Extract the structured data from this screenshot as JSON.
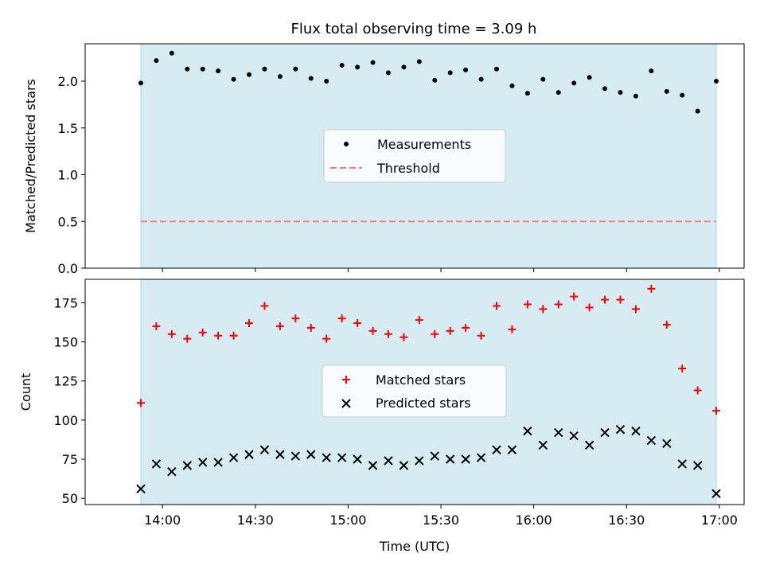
{
  "title": "Flux total observing time = 3.09 h",
  "colors": {
    "band": "#add8e6",
    "measurement": "#000000",
    "threshold": "#f08080",
    "matched": "#ff0000",
    "predicted": "#000000"
  },
  "chart_data": [
    {
      "type": "scatter",
      "ylabel": "Matched/Predicted stars",
      "ylim": [
        0,
        2.4
      ],
      "yticks": [
        "0.0",
        "0.5",
        "1.0",
        "1.5",
        "2.0"
      ],
      "legend_placement": "center",
      "observing_window": [
        "13:53",
        "16:59"
      ],
      "threshold": {
        "name": "Threshold",
        "value": 0.5
      },
      "series": [
        {
          "name": "Measurements",
          "x": [
            "13:53",
            "13:58",
            "14:03",
            "14:08",
            "14:13",
            "14:18",
            "14:23",
            "14:28",
            "14:33",
            "14:38",
            "14:43",
            "14:48",
            "14:53",
            "14:58",
            "15:03",
            "15:08",
            "15:13",
            "15:18",
            "15:23",
            "15:28",
            "15:33",
            "15:38",
            "15:43",
            "15:48",
            "15:53",
            "15:58",
            "16:03",
            "16:08",
            "16:13",
            "16:18",
            "16:23",
            "16:28",
            "16:33",
            "16:38",
            "16:43",
            "16:48",
            "16:53",
            "16:59"
          ],
          "y": [
            1.98,
            2.22,
            2.3,
            2.13,
            2.13,
            2.11,
            2.02,
            2.07,
            2.13,
            2.05,
            2.13,
            2.03,
            2.0,
            2.17,
            2.15,
            2.2,
            2.09,
            2.15,
            2.21,
            2.01,
            2.09,
            2.12,
            2.02,
            2.13,
            1.95,
            1.87,
            2.02,
            1.88,
            1.98,
            2.04,
            1.92,
            1.88,
            1.84,
            2.11,
            1.89,
            1.85,
            1.68,
            2.0
          ]
        }
      ]
    },
    {
      "type": "scatter",
      "xlabel": "Time (UTC)",
      "ylabel": "Count",
      "ylim": [
        46,
        190
      ],
      "yticks": [
        "50",
        "75",
        "100",
        "125",
        "150",
        "175"
      ],
      "xticks": [
        "14:00",
        "14:30",
        "15:00",
        "15:30",
        "16:00",
        "16:30",
        "17:00"
      ],
      "legend_placement": "center",
      "observing_window": [
        "13:53",
        "16:59"
      ],
      "series": [
        {
          "name": "Matched stars",
          "x": [
            "13:53",
            "13:58",
            "14:03",
            "14:08",
            "14:13",
            "14:18",
            "14:23",
            "14:28",
            "14:33",
            "14:38",
            "14:43",
            "14:48",
            "14:53",
            "14:58",
            "15:03",
            "15:08",
            "15:13",
            "15:18",
            "15:23",
            "15:28",
            "15:33",
            "15:38",
            "15:43",
            "15:48",
            "15:53",
            "15:58",
            "16:03",
            "16:08",
            "16:13",
            "16:18",
            "16:23",
            "16:28",
            "16:33",
            "16:38",
            "16:43",
            "16:48",
            "16:53",
            "16:59"
          ],
          "y": [
            111,
            160,
            155,
            152,
            156,
            154,
            154,
            162,
            173,
            160,
            165,
            159,
            152,
            165,
            162,
            157,
            155,
            153,
            164,
            155,
            157,
            159,
            154,
            173,
            158,
            174,
            171,
            174,
            179,
            172,
            177,
            177,
            171,
            184,
            161,
            133,
            119,
            106
          ]
        },
        {
          "name": "Predicted stars",
          "x": [
            "13:53",
            "13:58",
            "14:03",
            "14:08",
            "14:13",
            "14:18",
            "14:23",
            "14:28",
            "14:33",
            "14:38",
            "14:43",
            "14:48",
            "14:53",
            "14:58",
            "15:03",
            "15:08",
            "15:13",
            "15:18",
            "15:23",
            "15:28",
            "15:33",
            "15:38",
            "15:43",
            "15:48",
            "15:53",
            "15:58",
            "16:03",
            "16:08",
            "16:13",
            "16:18",
            "16:23",
            "16:28",
            "16:33",
            "16:38",
            "16:43",
            "16:48",
            "16:53",
            "16:59"
          ],
          "y": [
            56,
            72,
            67,
            71,
            73,
            73,
            76,
            78,
            81,
            78,
            77,
            78,
            76,
            76,
            75,
            71,
            74,
            71,
            74,
            77,
            75,
            75,
            76,
            81,
            81,
            93,
            84,
            92,
            90,
            84,
            92,
            94,
            93,
            87,
            85,
            72,
            71,
            53
          ]
        }
      ]
    }
  ]
}
